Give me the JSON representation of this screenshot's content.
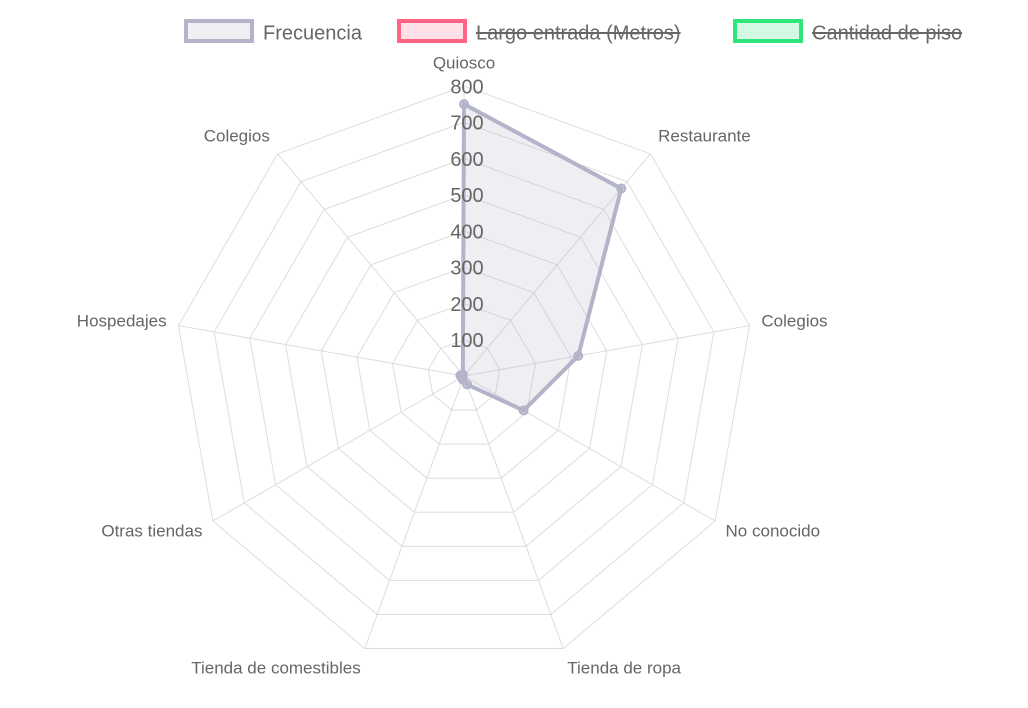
{
  "chart_data": {
    "type": "radar",
    "categories": [
      "Quiosco",
      "Restaurante",
      "Colegios",
      "No conocido",
      "Tienda de ropa",
      "Tienda de comestibles",
      "Otras tiendas",
      "Hospedajes",
      "Colegios"
    ],
    "series": [
      {
        "name": "Frecuencia",
        "color": "#b3b3c9",
        "values": [
          750,
          675,
          320,
          190,
          25,
          10,
          5,
          10,
          5
        ]
      },
      {
        "name": "Largo entrada (Metros)",
        "color": "#ff6384",
        "hidden": true
      },
      {
        "name": "Cantidad de piso",
        "color": "#2ee67a",
        "hidden": true
      }
    ],
    "rlim": [
      0,
      800
    ],
    "rticks": [
      100,
      200,
      300,
      400,
      500,
      600,
      700,
      800
    ],
    "grid": true,
    "legend": "top"
  }
}
